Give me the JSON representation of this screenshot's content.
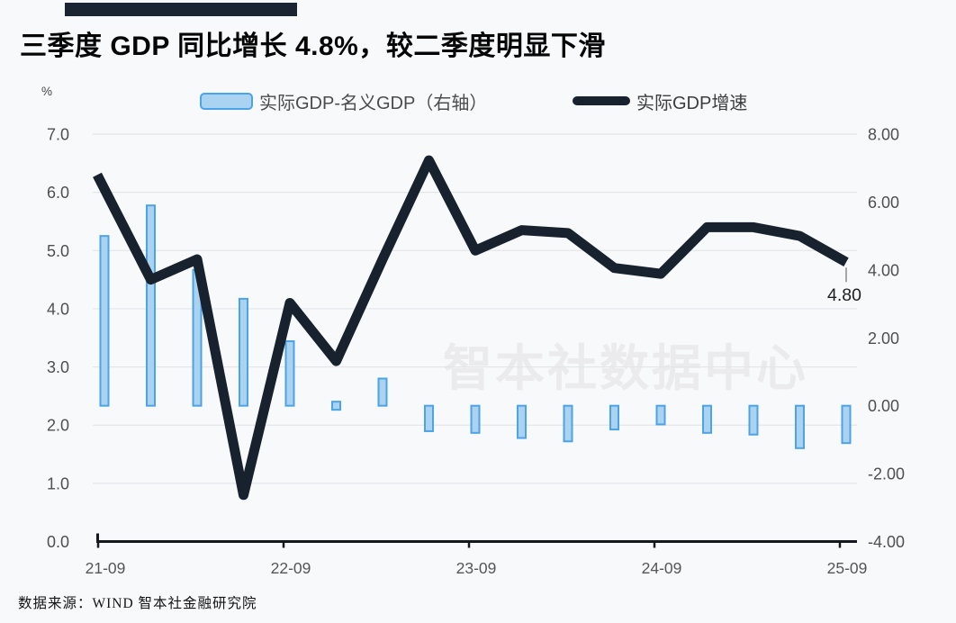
{
  "header": {
    "title": "三季度 GDP 同比增长 4.8%，较二季度明显下滑"
  },
  "legend": {
    "bar_label": "实际GDP-名义GDP（右轴）",
    "line_label": "实际GDP增速"
  },
  "axis_unit": "%",
  "watermark": "智本社数据中心",
  "footer": {
    "source": "数据来源：WIND 智本社金融研究院"
  },
  "annotation": {
    "end_value_label": "4.80"
  },
  "colors": {
    "background": "#f8f9fb",
    "accent_bar": "#1b2531",
    "bar_fill": "#abd3f0",
    "bar_border": "#4ba3e8",
    "line": "#17222e",
    "grid": "#e3e5e9",
    "axis": "#15181c",
    "tick_text": "#4f4f4f",
    "end_label_text": "#1f1f1f"
  },
  "chart_data": {
    "type": "combo",
    "categories": [
      "21-09",
      "21-12",
      "22-03",
      "22-06",
      "22-09",
      "22-12",
      "23-03",
      "23-06",
      "23-09",
      "23-12",
      "24-03",
      "24-06",
      "24-09",
      "24-12",
      "25-03",
      "25-06",
      "25-09"
    ],
    "x_tick_labels": [
      "21-09",
      "22-09",
      "23-09",
      "24-09",
      "25-09"
    ],
    "series": [
      {
        "name": "实际GDP-名义GDP（右轴）",
        "type": "bar",
        "axis": "right",
        "values": [
          5.0,
          5.9,
          4.0,
          3.15,
          1.9,
          -0.1,
          0.8,
          -0.75,
          -0.8,
          -0.95,
          -1.05,
          -0.7,
          -0.55,
          -0.8,
          -0.85,
          -1.25,
          -1.1
        ]
      },
      {
        "name": "实际GDP增速",
        "type": "line",
        "axis": "left",
        "values": [
          6.3,
          4.5,
          4.85,
          0.8,
          4.1,
          3.1,
          4.85,
          6.55,
          5.0,
          5.35,
          5.3,
          4.7,
          4.6,
          5.4,
          5.4,
          5.25,
          4.8
        ]
      }
    ],
    "left_axis": {
      "min": 0,
      "max": 7,
      "tick_labels": [
        "7.0",
        "6.0",
        "5.0",
        "4.0",
        "3.0",
        "2.0",
        "1.0",
        "0.0"
      ]
    },
    "right_axis": {
      "min": -4,
      "max": 8,
      "tick_labels": [
        "8.00",
        "6.00",
        "4.00",
        "2.00",
        "0.00",
        "-2.00",
        "-4.00"
      ]
    },
    "grid": true,
    "legend_position": "top",
    "annotations": [
      {
        "x": "25-09",
        "series": "实际GDP增速",
        "label": "4.80"
      }
    ]
  }
}
